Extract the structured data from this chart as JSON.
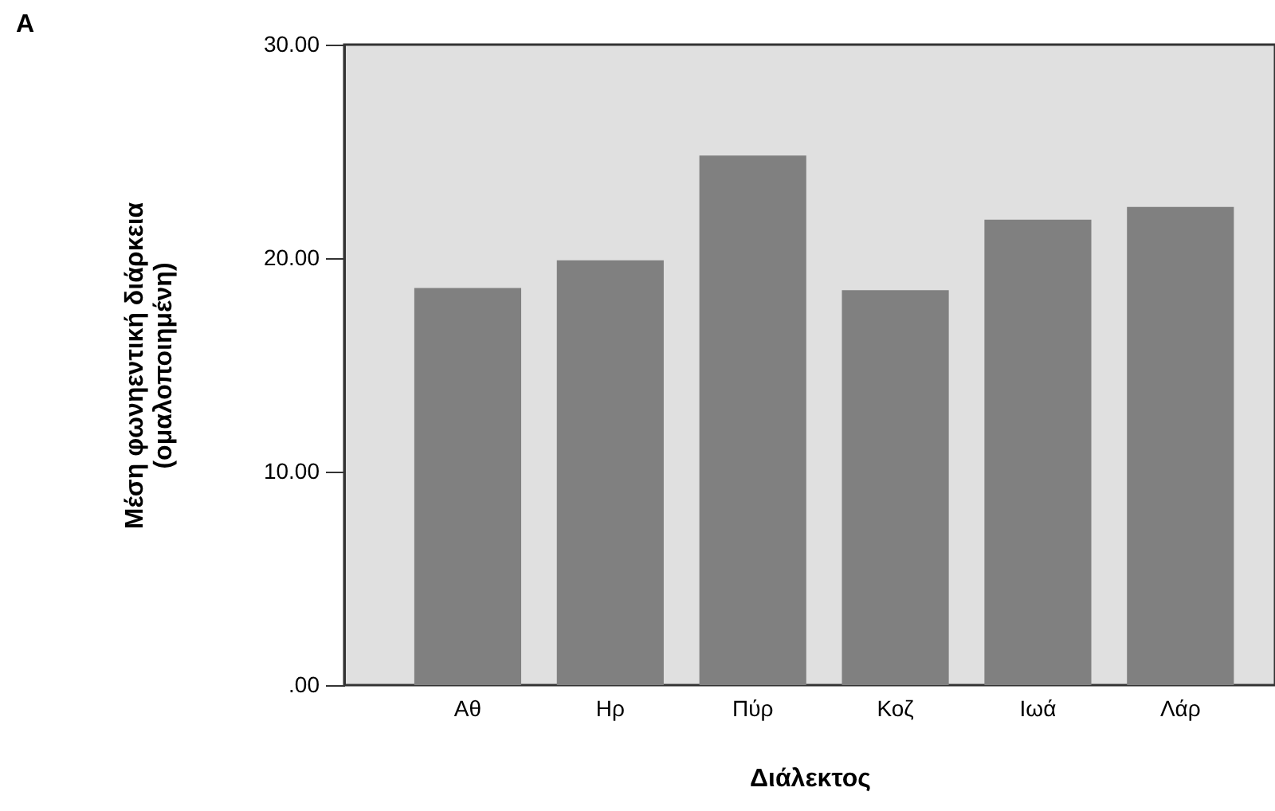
{
  "chart_data": {
    "type": "bar",
    "title": "A",
    "xlabel": "Διάλεκτος",
    "ylabel": "Μέση φωνηεντική διάρκεια\n(ομαλοποιημένη)",
    "categories": [
      "Αθ",
      "Ηρ",
      "Πύρ",
      "Κοζ",
      "Ιωά",
      "Λάρ"
    ],
    "values": [
      18.6,
      19.9,
      24.8,
      18.5,
      21.8,
      22.4
    ],
    "color": "#808080",
    "ylim": [
      0,
      30
    ],
    "yticks": [
      {
        "value": 0,
        "label": ".00"
      },
      {
        "value": 10,
        "label": "10.00"
      },
      {
        "value": 20,
        "label": "20.00"
      },
      {
        "value": 30,
        "label": "30.00"
      }
    ],
    "grid": false
  }
}
